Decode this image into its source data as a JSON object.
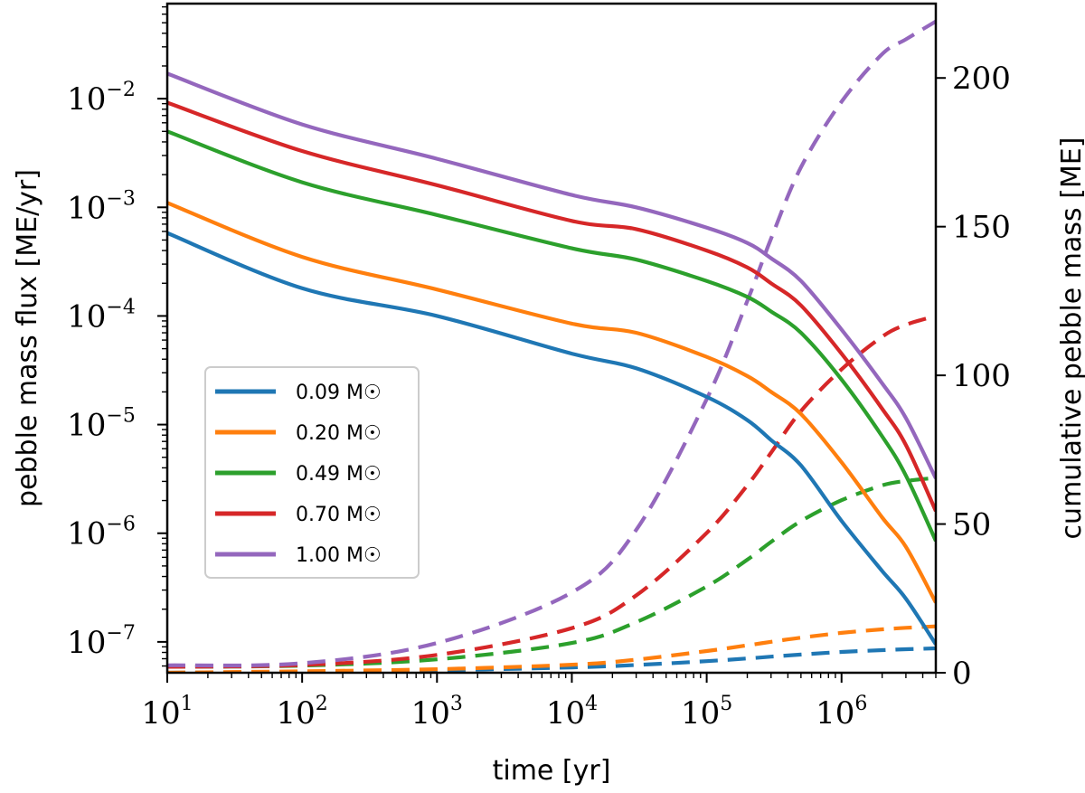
{
  "chart_data": {
    "type": "line",
    "title": "",
    "xlabel": "time [yr]",
    "ylabel_left": "pebble mass flux [ME/yr]",
    "ylabel_right": "cumulative pebble mass [ME]",
    "x_scale": "log",
    "xlim": [
      10,
      5000000
    ],
    "y_left_scale": "log",
    "y_left_lim": [
      5.2e-08,
      0.075
    ],
    "y_right_scale": "linear",
    "y_right_lim": [
      0,
      225
    ],
    "x_ticks": [
      {
        "value": 10,
        "base": "10",
        "exp": "1"
      },
      {
        "value": 100,
        "base": "10",
        "exp": "2"
      },
      {
        "value": 1000,
        "base": "10",
        "exp": "3"
      },
      {
        "value": 10000,
        "base": "10",
        "exp": "4"
      },
      {
        "value": 100000,
        "base": "10",
        "exp": "5"
      },
      {
        "value": 1000000,
        "base": "10",
        "exp": "6"
      }
    ],
    "y_left_ticks": [
      {
        "value": 0.01,
        "base": "10",
        "exp": "−2"
      },
      {
        "value": 0.001,
        "base": "10",
        "exp": "−3"
      },
      {
        "value": 0.0001,
        "base": "10",
        "exp": "−4"
      },
      {
        "value": 1e-05,
        "base": "10",
        "exp": "−5"
      },
      {
        "value": 1e-06,
        "base": "10",
        "exp": "−6"
      },
      {
        "value": 1e-07,
        "base": "10",
        "exp": "−7"
      }
    ],
    "y_right_ticks": [
      {
        "value": 0,
        "label": "0"
      },
      {
        "value": 50,
        "label": "50"
      },
      {
        "value": 100,
        "label": "100"
      },
      {
        "value": 150,
        "label": "150"
      },
      {
        "value": 200,
        "label": "200"
      }
    ],
    "x": [
      10,
      100,
      1000,
      10000,
      30000,
      100000,
      200000,
      300000,
      500000,
      1000000,
      2000000,
      3000000,
      5000000
    ],
    "series": [
      {
        "name": "0.09 M☉",
        "color": "#1f77b4",
        "flux": [
          0.00058,
          0.00018,
          0.0001,
          4.5e-05,
          3.3e-05,
          1.8e-05,
          1.1e-05,
          7.2e-06,
          4.2e-06,
          1.3e-06,
          4.5e-07,
          2.5e-07,
          9.5e-08
        ],
        "cumulative": [
          0,
          0.3,
          0.8,
          1.8,
          2.6,
          3.9,
          4.8,
          5.4,
          6.1,
          7.0,
          7.6,
          7.9,
          8.2
        ]
      },
      {
        "name": "0.20 M☉",
        "color": "#ff7f0e",
        "flux": [
          0.0011,
          0.00035,
          0.000175,
          8.5e-05,
          7e-05,
          4.2e-05,
          2.8e-05,
          2e-05,
          1.25e-05,
          4.5e-06,
          1.4e-06,
          7.5e-07,
          2.3e-07
        ],
        "cumulative": [
          0,
          0.5,
          1.2,
          2.7,
          4.4,
          7.3,
          9.2,
          10.4,
          11.8,
          13.4,
          14.6,
          15.1,
          15.6
        ]
      },
      {
        "name": "0.49 M☉",
        "color": "#2ca02c",
        "flux": [
          0.005,
          0.0017,
          0.00085,
          0.00042,
          0.00033,
          0.00021,
          0.00015,
          0.00011,
          7e-05,
          2.6e-05,
          7.8e-06,
          3.4e-06,
          8.5e-07
        ],
        "cumulative": [
          2.0,
          2.4,
          4.5,
          10,
          17,
          29,
          38,
          44,
          51,
          58,
          63,
          64.5,
          65.5
        ]
      },
      {
        "name": "0.70 M☉",
        "color": "#d62728",
        "flux": [
          0.0092,
          0.0033,
          0.0016,
          0.00075,
          0.00063,
          0.0004,
          0.00028,
          0.0002,
          0.000125,
          4.5e-05,
          1.4e-05,
          6.5e-06,
          1.6e-06
        ],
        "cumulative": [
          2.0,
          2.6,
          6,
          15,
          26,
          47,
          63,
          74,
          88,
          102,
          113,
          117,
          120
        ]
      },
      {
        "name": "1.00 M☉",
        "color": "#9467bd",
        "flux": [
          0.017,
          0.0058,
          0.0028,
          0.0013,
          0.001,
          0.00065,
          0.00047,
          0.00034,
          0.00021,
          7.5e-05,
          2.4e-05,
          1.15e-05,
          3.2e-06
        ],
        "cumulative": [
          2.5,
          3.2,
          10,
          27,
          48,
          92,
          125,
          146,
          170,
          192,
          208,
          213,
          219
        ]
      }
    ],
    "legend": {
      "placement": "center-left",
      "entries": [
        "0.09 M☉",
        "0.20 M☉",
        "0.49 M☉",
        "0.70 M☉",
        "1.00 M☉"
      ]
    },
    "line_styles": {
      "flux": "solid",
      "cumulative": "dashed"
    },
    "grid": false
  }
}
